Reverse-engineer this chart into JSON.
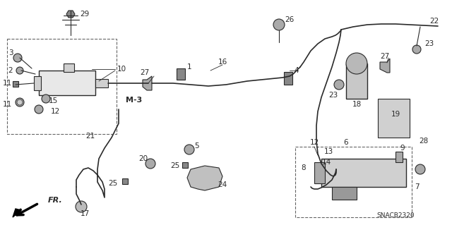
{
  "background_color": "#ffffff",
  "diagram_code": "SNACB2320",
  "fig_width": 6.4,
  "fig_height": 3.19,
  "dpi": 100,
  "image_b64": ""
}
